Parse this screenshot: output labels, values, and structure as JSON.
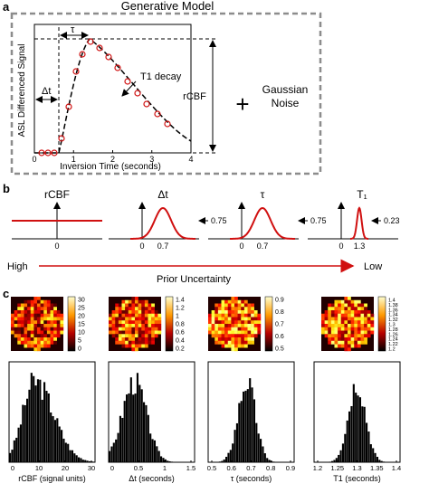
{
  "panel_a": {
    "letter": "a",
    "title": "Generative Model",
    "ylabel": "ASL Differenced Signal",
    "xlabel": "Inversion Time (seconds)",
    "x_ticks": [
      "0",
      "1",
      "2",
      "3",
      "4"
    ],
    "dt_label": "Δt",
    "tau_label": "τ",
    "t1_label": "T1 decay",
    "rcbf_label": "rCBF",
    "plus": "+",
    "noise_line1": "Gaussian",
    "noise_line2": "Noise",
    "colors": {
      "curve": "#000000",
      "points": "#d01010",
      "box": "#8c8c8c"
    }
  },
  "panel_b": {
    "letter": "b",
    "priors": [
      {
        "title": "rCBF",
        "zero": "0",
        "center": "",
        "width_label": ""
      },
      {
        "title": "Δt",
        "zero": "0",
        "center": "0.7",
        "width_label": "0.75"
      },
      {
        "title": "τ",
        "zero": "0",
        "center": "0.7",
        "width_label": "0.75"
      },
      {
        "title": "T₁",
        "zero": "0",
        "center": "1.3",
        "width_label": "0.23"
      }
    ],
    "high_label": "High",
    "low_label": "Low",
    "axis_label": "Prior Uncertainty",
    "colors": {
      "prior": "#d01010",
      "arrow": "#d01010"
    }
  },
  "panel_c": {
    "letter": "c",
    "maps": [
      {
        "colorbar_ticks": [
          "30",
          "25",
          "20",
          "15",
          "10",
          "5",
          "0"
        ]
      },
      {
        "colorbar_ticks": [
          "1.4",
          "1.2",
          "1",
          "0.8",
          "0.6",
          "0.4",
          "0.2"
        ]
      },
      {
        "colorbar_ticks": [
          "0.9",
          "0.8",
          "0.7",
          "0.6",
          "0.5"
        ]
      },
      {
        "colorbar_ticks": [
          "1.4",
          "1.38",
          "1.36",
          "1.34",
          "1.32",
          "1.3",
          "1.28",
          "1.26",
          "1.24",
          "1.22",
          "1.2"
        ]
      }
    ],
    "histograms": [
      {
        "x_ticks": [
          "0",
          "10",
          "20",
          "30"
        ],
        "xlabel": "rCBF (signal units)"
      },
      {
        "x_ticks": [
          "0",
          "0.5",
          "1",
          "1.5"
        ],
        "xlabel": "Δt (seconds)"
      },
      {
        "x_ticks": [
          "0.5",
          "0.6",
          "0.7",
          "0.8",
          "0.9"
        ],
        "xlabel": "τ (seconds)"
      },
      {
        "x_ticks": [
          "1.2",
          "1.25",
          "1.3",
          "1.35",
          "1.4"
        ],
        "xlabel": "T1 (seconds)"
      }
    ]
  }
}
